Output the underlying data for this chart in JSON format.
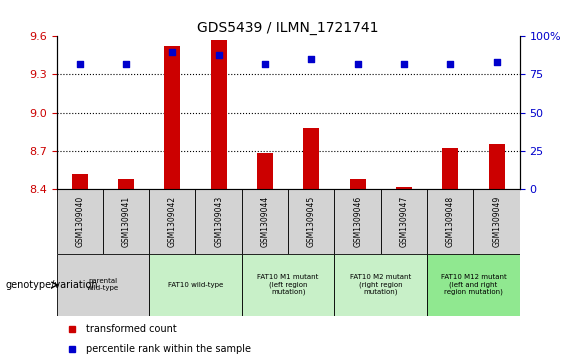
{
  "title": "GDS5439 / ILMN_1721741",
  "samples": [
    "GSM1309040",
    "GSM1309041",
    "GSM1309042",
    "GSM1309043",
    "GSM1309044",
    "GSM1309045",
    "GSM1309046",
    "GSM1309047",
    "GSM1309048",
    "GSM1309049"
  ],
  "bar_values": [
    8.52,
    8.48,
    9.52,
    9.57,
    8.68,
    8.88,
    8.48,
    8.41,
    8.72,
    8.75
  ],
  "dot_values": [
    82,
    82,
    90,
    88,
    82,
    85,
    82,
    82,
    82,
    83
  ],
  "ylim_left": [
    8.4,
    9.6
  ],
  "ylim_right": [
    0,
    100
  ],
  "yticks_left": [
    8.4,
    8.7,
    9.0,
    9.3,
    9.6
  ],
  "yticks_right": [
    0,
    25,
    50,
    75,
    100
  ],
  "bar_color": "#CC0000",
  "dot_color": "#0000CC",
  "groups": [
    {
      "label": "parental\nwild-type",
      "start": 0,
      "end": 2,
      "color": "#d3d3d3"
    },
    {
      "label": "FAT10 wild-type",
      "start": 2,
      "end": 4,
      "color": "#c8f0c8"
    },
    {
      "label": "FAT10 M1 mutant\n(left region\nmutation)",
      "start": 4,
      "end": 6,
      "color": "#c8f0c8"
    },
    {
      "label": "FAT10 M2 mutant\n(right region\nmutation)",
      "start": 6,
      "end": 8,
      "color": "#c8f0c8"
    },
    {
      "label": "FAT10 M12 mutant\n(left and right\nregion mutation)",
      "start": 8,
      "end": 10,
      "color": "#90e890"
    }
  ],
  "legend_red_label": "transformed count",
  "legend_blue_label": "percentile rank within the sample",
  "genotype_label": "genotype/variation",
  "bar_bottom": 8.4,
  "background_color": "#ffffff",
  "sample_row_color": "#d3d3d3",
  "bar_width": 0.35
}
